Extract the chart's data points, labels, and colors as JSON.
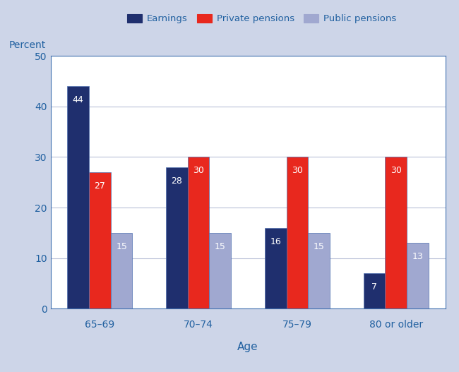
{
  "categories": [
    "65–69",
    "70–74",
    "75–79",
    "80 or older"
  ],
  "earnings": [
    44,
    28,
    16,
    7
  ],
  "private_pensions": [
    27,
    30,
    30,
    30
  ],
  "public_pensions": [
    15,
    15,
    15,
    13
  ],
  "earnings_color": "#1f2f6e",
  "private_color": "#e8281e",
  "public_color": "#a0a8d0",
  "earnings_label": "Earnings",
  "private_label": "Private pensions",
  "public_label": "Public pensions",
  "xlabel": "Age",
  "ylabel": "Percent",
  "ylim": [
    0,
    50
  ],
  "yticks": [
    0,
    10,
    20,
    30,
    40,
    50
  ],
  "grid_color": "#b8c0d8",
  "background_color": "#cdd5e8",
  "plot_bg_color": "#ffffff",
  "tick_label_color": "#2060a0",
  "bar_width": 0.22,
  "bar_edge_color": "#5070b0",
  "bar_edge_width": 0.5,
  "legend_edgecolor": "#4070b0",
  "bottom_bg_color": "#d0d8f0",
  "label_fontsize": 10,
  "tick_fontsize": 10,
  "value_fontsize": 9
}
